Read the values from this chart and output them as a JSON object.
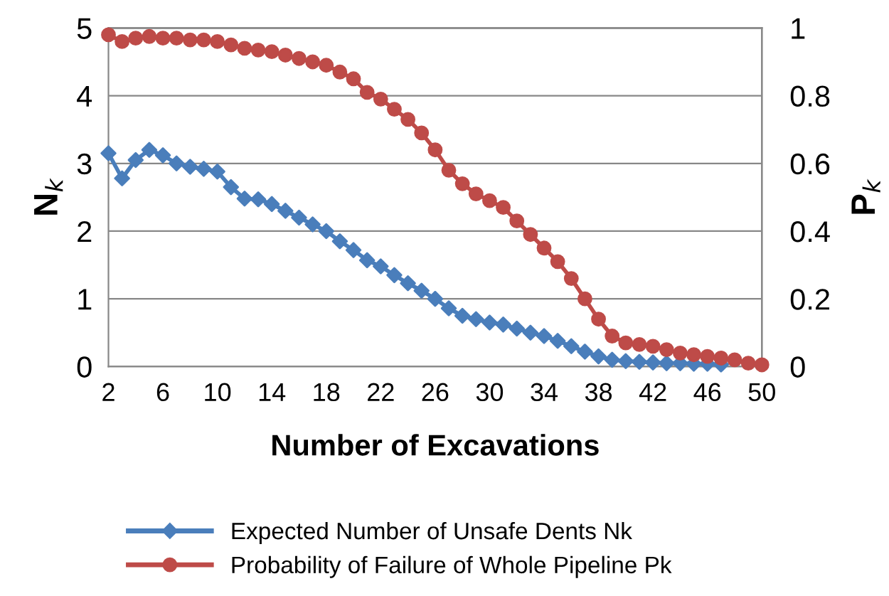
{
  "chart_data": {
    "type": "line",
    "xlabel": "Number of Excavations",
    "ylabel": "N$_{k}$",
    "y2label": "P$_{k}$",
    "x": [
      2,
      3,
      4,
      5,
      6,
      7,
      8,
      9,
      10,
      11,
      12,
      13,
      14,
      15,
      16,
      17,
      18,
      19,
      20,
      21,
      22,
      23,
      24,
      25,
      26,
      27,
      28,
      29,
      30,
      31,
      32,
      33,
      34,
      35,
      36,
      37,
      38,
      39,
      40,
      41,
      42,
      43,
      44,
      45,
      46,
      47,
      48,
      49,
      50
    ],
    "xlim": [
      2,
      50
    ],
    "xticks": [
      2,
      6,
      10,
      14,
      18,
      22,
      26,
      30,
      34,
      38,
      42,
      46,
      50
    ],
    "ylim": [
      0,
      5
    ],
    "yticks": [
      0,
      1,
      2,
      3,
      4,
      5
    ],
    "y2lim": [
      0,
      1
    ],
    "y2ticks": [
      0,
      {
        "value": 0.2,
        "label": "0.2"
      },
      {
        "value": 0.4,
        "label": "0.4"
      },
      {
        "value": 0.6,
        "label": "0.6"
      },
      {
        "value": 0.8,
        "label": "0.8"
      },
      1
    ],
    "grid": "y",
    "legend": "bottom",
    "line_style": "solid",
    "series": [
      {
        "name": "Expected Number of Unsafe Dents Nk",
        "color": "#4a7ebb",
        "marker": "diamond",
        "values": [
          3.15,
          2.78,
          3.05,
          3.2,
          3.12,
          3.0,
          2.95,
          2.92,
          2.88,
          2.65,
          2.48,
          2.47,
          2.4,
          2.3,
          2.2,
          2.1,
          2.0,
          1.85,
          1.72,
          1.57,
          1.48,
          1.35,
          1.23,
          1.12,
          1.0,
          0.86,
          0.75,
          0.7,
          0.65,
          0.62,
          0.56,
          0.5,
          0.45,
          0.38,
          0.3,
          0.22,
          0.15,
          0.1,
          0.08,
          0.07,
          0.06,
          0.05,
          0.05,
          0.04,
          0.04,
          0.03,
          null,
          null,
          null
        ]
      },
      {
        "name": "Probability of Failure of Whole Pipeline Pk",
        "color": "#be4b48",
        "marker": "circle",
        "axis": "y2",
        "values": [
          0.98,
          0.96,
          0.97,
          0.975,
          0.97,
          0.97,
          0.965,
          0.965,
          0.96,
          0.95,
          0.94,
          0.935,
          0.93,
          0.92,
          0.91,
          0.9,
          0.89,
          0.87,
          0.85,
          0.81,
          0.79,
          0.76,
          0.73,
          0.69,
          0.64,
          0.58,
          0.54,
          0.51,
          0.49,
          0.47,
          0.43,
          0.39,
          0.35,
          0.31,
          0.26,
          0.2,
          0.14,
          0.09,
          0.07,
          0.065,
          0.06,
          0.05,
          0.04,
          0.035,
          0.03,
          0.025,
          0.02,
          0.01,
          0.005
        ]
      }
    ]
  }
}
